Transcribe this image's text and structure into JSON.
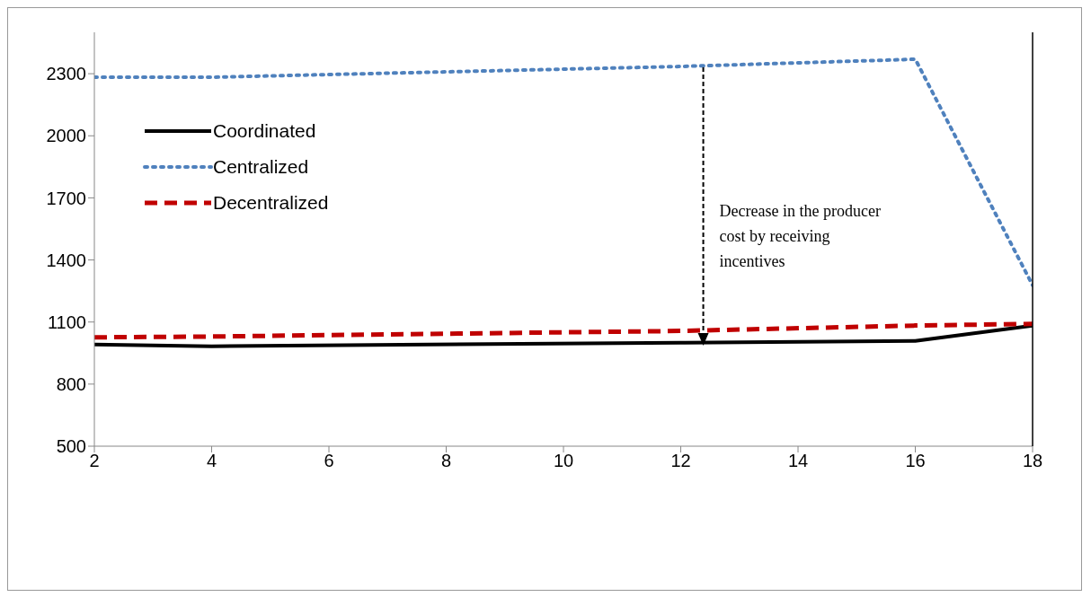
{
  "chart_data": {
    "type": "line",
    "xlim": [
      2,
      18
    ],
    "xticks": [
      2,
      4,
      6,
      8,
      10,
      12,
      14,
      16,
      18
    ],
    "ylim": [
      500,
      2500
    ],
    "yticks": [
      500,
      800,
      1100,
      1400,
      1700,
      2000,
      2300
    ],
    "grid": false,
    "legend": "top left",
    "marker": "none",
    "x": [
      2,
      4,
      12,
      16,
      18
    ],
    "series": [
      {
        "name": "Coordinated",
        "color": "#000000",
        "line_style": "solid",
        "values": [
          991,
          983,
          1000,
          1009,
          1083
        ]
      },
      {
        "name": "Centralized",
        "color": "#4f81bd",
        "line_style": "dotted",
        "values": [
          2283,
          2283,
          2335,
          2370,
          1278
        ]
      },
      {
        "name": "Decentralized",
        "color": "#c00000",
        "line_style": "dashed",
        "values": [
          1026,
          1030,
          1057,
          1083,
          1091
        ]
      }
    ],
    "annotations": [
      "Decrease in the producer cost by receiving incentives"
    ]
  }
}
